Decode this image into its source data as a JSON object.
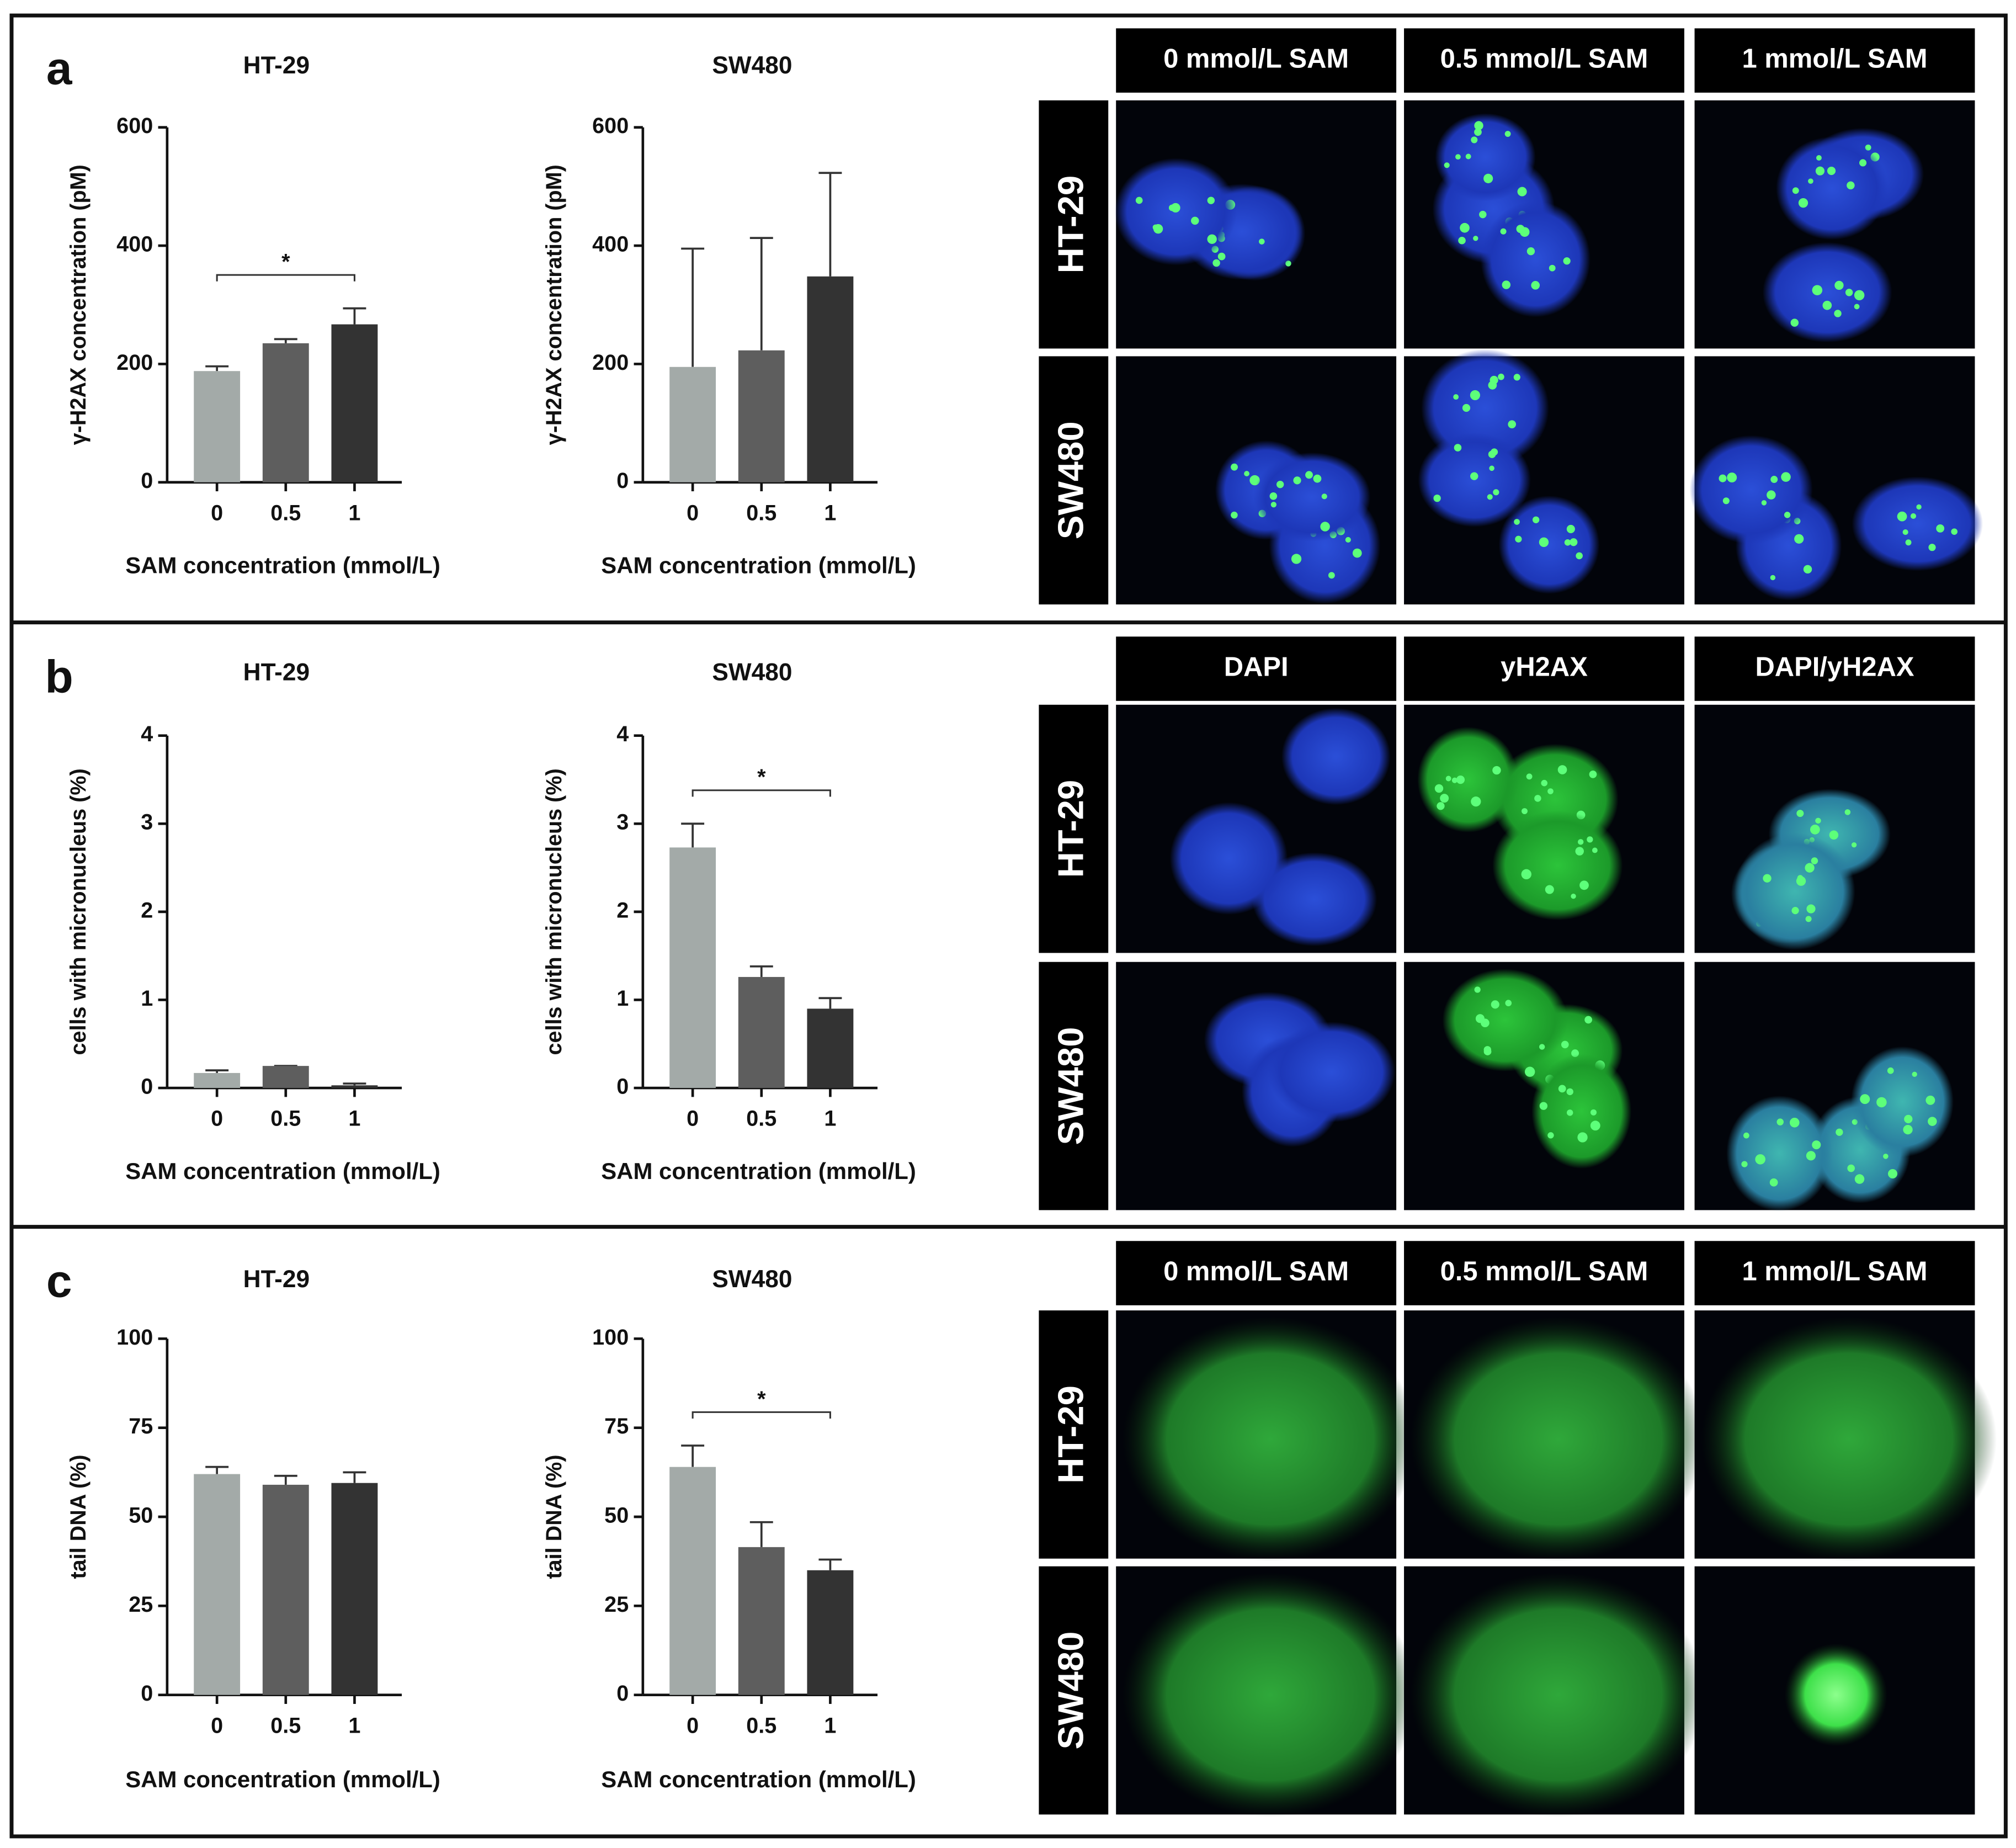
{
  "chart_data": [
    {
      "type": "bar",
      "title": "HT-29",
      "y_label": "γ-H2AX concentration (pM)",
      "x_label": "SAM concentration (mmol/L)",
      "categories": [
        "0",
        "0.5",
        "1"
      ],
      "values": [
        188,
        235,
        267
      ],
      "errors": [
        8,
        7,
        27
      ],
      "colors": [
        "#a3aaa8",
        "#5e5e5e",
        "#333333"
      ],
      "ylim": [
        0,
        600
      ],
      "yticks": [
        0,
        200,
        400,
        600
      ],
      "annotations": [
        {
          "text": "*",
          "from": "0",
          "to": "1"
        }
      ]
    },
    {
      "type": "bar",
      "title": "SW480",
      "y_label": "γ-H2AX concentration (pM)",
      "x_label": "SAM concentration (mmol/L)",
      "categories": [
        "0",
        "0.5",
        "1"
      ],
      "values": [
        195,
        223,
        348
      ],
      "errors": [
        200,
        190,
        175
      ],
      "colors": [
        "#a3aaa8",
        "#5e5e5e",
        "#333333"
      ],
      "ylim": [
        0,
        600
      ],
      "yticks": [
        0,
        200,
        400,
        600
      ]
    },
    {
      "type": "bar",
      "title": "HT-29",
      "y_label": "cells with micronucleus (%)",
      "x_label": "SAM concentration (mmol/L)",
      "categories": [
        "0",
        "0.5",
        "1"
      ],
      "values": [
        0.17,
        0.25,
        0.03
      ],
      "errors": [
        0.03,
        0,
        0.02
      ],
      "colors": [
        "#a3aaa8",
        "#5e5e5e",
        "#333333"
      ],
      "ylim": [
        0,
        4
      ],
      "yticks": [
        0,
        1,
        2,
        3,
        4
      ]
    },
    {
      "type": "bar",
      "title": "SW480",
      "y_label": "cells with micronucleus (%)",
      "x_label": "SAM concentration (mmol/L)",
      "categories": [
        "0",
        "0.5",
        "1"
      ],
      "values": [
        2.73,
        1.26,
        0.9
      ],
      "errors": [
        0.27,
        0.12,
        0.12
      ],
      "colors": [
        "#a3aaa8",
        "#5e5e5e",
        "#333333"
      ],
      "ylim": [
        0,
        4
      ],
      "yticks": [
        0,
        1,
        2,
        3,
        4
      ],
      "annotations": [
        {
          "text": "*",
          "from": "0",
          "to": "1"
        }
      ]
    },
    {
      "type": "bar",
      "title": "HT-29",
      "y_label": "tail DNA (%)",
      "x_label": "SAM concentration (mmol/L)",
      "categories": [
        "0",
        "0.5",
        "1"
      ],
      "values": [
        62,
        59,
        59.5
      ],
      "errors": [
        2,
        2.5,
        3
      ],
      "colors": [
        "#a3aaa8",
        "#5e5e5e",
        "#333333"
      ],
      "ylim": [
        0,
        100
      ],
      "yticks": [
        0,
        25,
        50,
        75,
        100
      ]
    },
    {
      "type": "bar",
      "title": "SW480",
      "y_label": "tail DNA (%)",
      "x_label": "SAM concentration (mmol/L)",
      "categories": [
        "0",
        "0.5",
        "1"
      ],
      "values": [
        64,
        41.5,
        35
      ],
      "errors": [
        6,
        7,
        3
      ],
      "colors": [
        "#a3aaa8",
        "#5e5e5e",
        "#333333"
      ],
      "ylim": [
        0,
        100
      ],
      "yticks": [
        0,
        25,
        50,
        75,
        100
      ],
      "annotations": [
        {
          "text": "*",
          "from": "0",
          "to": "1"
        }
      ]
    }
  ],
  "panels": [
    {
      "label": "a",
      "columns": [
        "0 mmol/L SAM",
        "0.5 mmol/L SAM",
        "1 mmol/L SAM"
      ],
      "rows": [
        "HT-29",
        "SW480"
      ]
    },
    {
      "label": "b",
      "columns": [
        "DAPI",
        "yH2AX",
        "DAPI/yH2AX"
      ],
      "rows": [
        "HT-29",
        "SW480"
      ]
    },
    {
      "label": "c",
      "columns": [
        "0 mmol/L SAM",
        "0.5 mmol/L SAM",
        "1 mmol/L SAM"
      ],
      "rows": [
        "HT-29",
        "SW480"
      ]
    }
  ]
}
